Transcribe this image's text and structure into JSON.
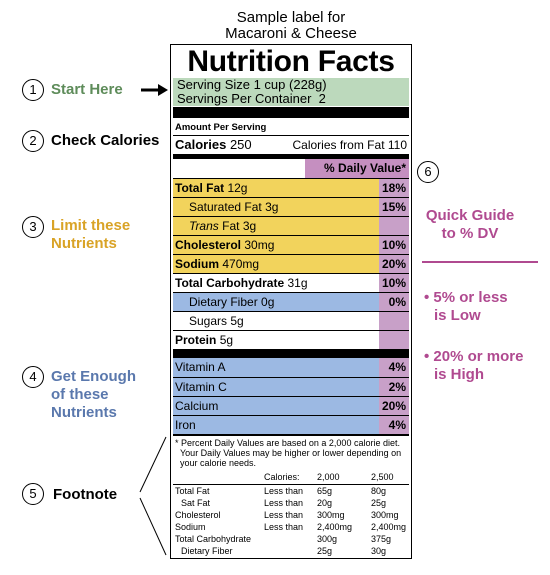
{
  "caption": [
    "Sample label for",
    "Macaroni & Cheese"
  ],
  "label": {
    "title": "Nutrition Facts",
    "serving_size": "Serving Size 1 cup (228g)",
    "servings_per_container": "Servings Per Container  2",
    "amount_per_serving": "Amount Per Serving",
    "calories": {
      "label": "Calories",
      "value": "250",
      "from_fat": "Calories from Fat 110"
    },
    "daily_value_header": "% Daily Value*",
    "nutrients": [
      {
        "name": "Total Fat",
        "amount": "12g",
        "dv": "18%"
      },
      {
        "name": "Saturated Fat",
        "amount": "3g",
        "dv": "15%"
      },
      {
        "name_italic": "Trans",
        "name": "Fat",
        "amount": "3g"
      },
      {
        "name": "Cholesterol",
        "amount": "30mg",
        "dv": "10%"
      },
      {
        "name": "Sodium",
        "amount": "470mg",
        "dv": "20%"
      },
      {
        "name": "Total Carbohydrate",
        "amount": "31g",
        "dv": "10%"
      },
      {
        "name": "Dietary Fiber",
        "amount": "0g",
        "dv": "0%"
      },
      {
        "name": "Sugars",
        "amount": "5g"
      },
      {
        "name": "Protein",
        "amount": "5g"
      }
    ],
    "vitamins": [
      {
        "name": "Vitamin A",
        "dv": "4%"
      },
      {
        "name": "Vitamin C",
        "dv": "2%"
      },
      {
        "name": "Calcium",
        "dv": "20%"
      },
      {
        "name": "Iron",
        "dv": "4%"
      }
    ],
    "footnote": {
      "lines": [
        "* Percent Daily Values are based on a 2,000 calorie diet.",
        "Your Daily Values may be higher or lower depending on",
        "your calorie needs."
      ],
      "table": {
        "header": [
          "Calories:",
          "2,000",
          "2,500"
        ],
        "rows": [
          [
            "Total Fat",
            "Less than",
            "65g",
            "80g"
          ],
          [
            "Sat Fat",
            "Less than",
            "20g",
            "25g"
          ],
          [
            "Cholesterol",
            "Less than",
            "300mg",
            "300mg"
          ],
          [
            "Sodium",
            "Less than",
            "2,400mg",
            "2,400mg"
          ],
          [
            "Total Carbohydrate",
            "300g",
            "375g"
          ],
          [
            "Dietary Fiber",
            "25g",
            "30g"
          ]
        ]
      }
    }
  },
  "steps": [
    {
      "number": "1",
      "text": [
        "Start Here"
      ]
    },
    {
      "number": "2",
      "text": [
        "Check Calories"
      ]
    },
    {
      "number": "3",
      "text": [
        "Limit these",
        "Nutrients"
      ]
    },
    {
      "number": "4",
      "text": [
        "Get Enough",
        "of these",
        "Nutrients"
      ]
    },
    {
      "number": "5",
      "text": [
        "Footnote"
      ]
    }
  ],
  "quick_guide": {
    "number": "6",
    "title": [
      "Quick Guide",
      "to % DV"
    ],
    "low": [
      "• 5% or less",
      "is Low"
    ],
    "high": [
      "• 20% or more",
      "is High"
    ]
  }
}
